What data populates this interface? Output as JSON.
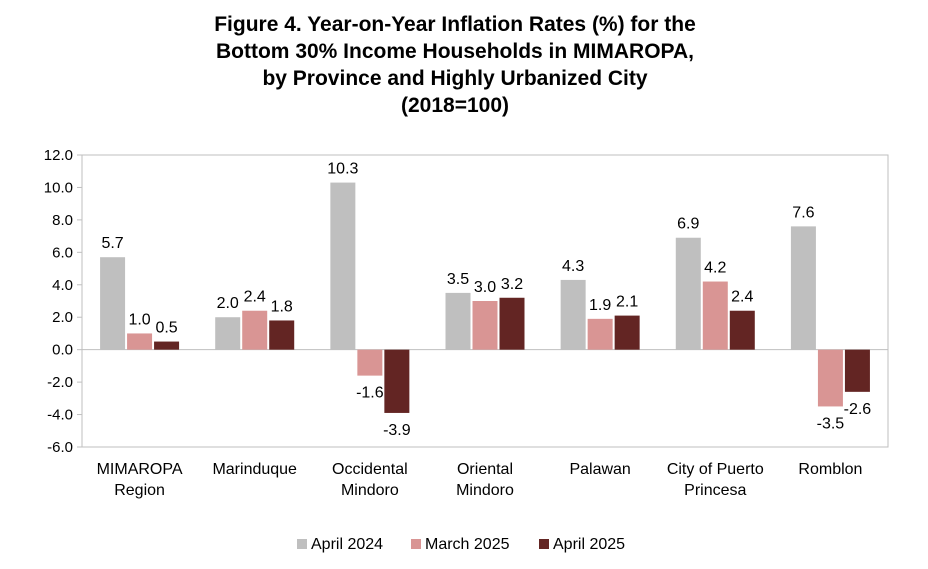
{
  "chart_data": {
    "type": "bar",
    "title_lines": [
      "Figure 4. Year-on-Year Inflation Rates (%) for the",
      "Bottom 30% Income Households in MIMAROPA,",
      "by Province and Highly Urbanized City",
      "(2018=100)"
    ],
    "xlabel": "",
    "ylabel": "",
    "ylim": [
      -6,
      12
    ],
    "yticks": [
      "12.0",
      "10.0",
      "8.0",
      "6.0",
      "4.0",
      "2.0",
      "0.0",
      "-2.0",
      "-4.0",
      "-6.0"
    ],
    "ytick_values": [
      12,
      10,
      8,
      6,
      4,
      2,
      0,
      -2,
      -4,
      -6
    ],
    "grid": false,
    "legend_position": "bottom",
    "categories": [
      [
        "MIMAROPA",
        "Region"
      ],
      [
        "Marinduque"
      ],
      [
        "Occidental",
        "Mindoro"
      ],
      [
        "Oriental",
        "Mindoro"
      ],
      [
        "Palawan"
      ],
      [
        "City of Puerto",
        "Princesa"
      ],
      [
        "Romblon"
      ]
    ],
    "series": [
      {
        "name": "April 2024",
        "color": "#bfbfbf",
        "values": [
          5.7,
          2.0,
          10.3,
          3.5,
          4.3,
          6.9,
          7.6
        ],
        "labels": [
          "5.7",
          "2.0",
          "10.3",
          "3.5",
          "4.3",
          "6.9",
          "7.6"
        ]
      },
      {
        "name": "March 2025",
        "color": "#d99594",
        "values": [
          1.0,
          2.4,
          -1.6,
          3.0,
          1.9,
          4.2,
          -3.5
        ],
        "labels": [
          "1.0",
          "2.4",
          "-1.6",
          "3.0",
          "1.9",
          "4.2",
          "-3.5"
        ]
      },
      {
        "name": "April 2025",
        "color": "#632523",
        "values": [
          0.5,
          1.8,
          -3.9,
          3.2,
          2.1,
          2.4,
          -2.6
        ],
        "labels": [
          "0.5",
          "1.8",
          "-3.9",
          "3.2",
          "2.1",
          "2.4",
          "-2.6"
        ]
      }
    ]
  }
}
